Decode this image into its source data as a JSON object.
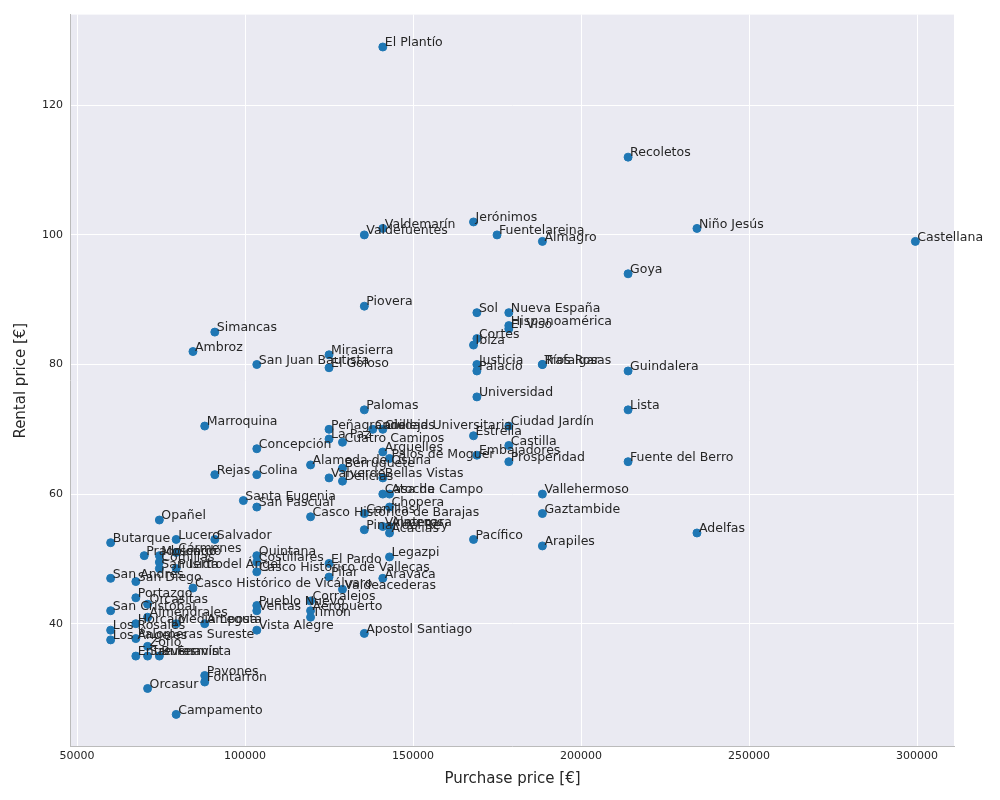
{
  "chart_data": {
    "type": "scatter",
    "x_label": "Purchase price [€]",
    "y_label": "Rental price [€]",
    "color": "#1f77b4",
    "grid": true,
    "xlim": [
      48200,
      311000
    ],
    "xticks": [
      50000,
      100000,
      150000,
      200000,
      250000,
      300000
    ],
    "ylim": [
      21,
      134
    ],
    "yticks": [
      40,
      60,
      80,
      100,
      120
    ],
    "labels": [
      "El Plantío",
      "Recoletos",
      "Niño Jesús",
      "Castellana",
      "Jerónimos",
      "Valdemarín",
      "Valdefuentes",
      "Fuentelareina",
      "Almagro",
      "Goya",
      "Piovera",
      "Sol",
      "Nueva España",
      "Hispanoamérica",
      "El Viso",
      "Simancas",
      "Cortes",
      "Ibiza",
      "Ambroz",
      "Mirasierra",
      "San Juan Bautista",
      "El Goloso",
      "Justicia",
      "Palacio",
      "Ríos Rosas",
      "Trafalgar",
      "Guindalera",
      "Universidad",
      "Palomas",
      "Lista",
      "Marroquina",
      "Peñagrande",
      "Canillejas",
      "Ciudad Universitaria",
      "Ciudad Jardín",
      "La Paz",
      "Cuatro Caminos",
      "Estrella",
      "Castilla",
      "Concepción",
      "Argüelles",
      "Embajadores",
      "Palos de Moguer",
      "Prosperidad",
      "Fuente del Berro",
      "Alameda de Osuna",
      "Berruguete",
      "Rejas",
      "Colina",
      "Valverde",
      "Delicias",
      "Bellas Vistas",
      "Casa de Campo",
      "Atocha",
      "Vallehermoso",
      "Santa Eugenia",
      "San Pascual",
      "Chopera",
      "Canillas",
      "Gaztambide",
      "Casco Histórico de Barajas",
      "Opañel",
      "Pinar del Rey",
      "Vinateros",
      "Almenara",
      "Acacias",
      "Adelfas",
      "Pacífico",
      "Butarque",
      "Lucero",
      "Salvador",
      "Arapiles",
      "Cármenes",
      "Pradolongo",
      "Moscardó",
      "Quintana",
      "Legazpi",
      "Comillas",
      "Costillares",
      "El Pardo",
      "San Isidro",
      "Puerta del Ángel",
      "Casco Histórico de Vallecas",
      "Pilar",
      "Aravaca",
      "San Andrés",
      "San Diego",
      "Casco Histórico de Vicálvaro",
      "Valdeacederas",
      "Portazgo",
      "Corralejos",
      "Orcasitas",
      "Pueblo Nuevo",
      "Ventas",
      "San Cristóbal",
      "Aeropuerto",
      "Timón",
      "Almendrales",
      "Horcajo",
      "Media Legua",
      "Amposta",
      "Vista Alegre",
      "Los Rosales",
      "Apostol Santiago",
      "Palomeras Sureste",
      "Los Ángeles",
      "Zofío",
      "Entrevías",
      "San Fermín",
      "Buenavista",
      "Pavones",
      "Fontarrón",
      "Orcasur",
      "Campamento"
    ],
    "x": [
      141000,
      214000,
      234500,
      299500,
      168000,
      141000,
      135500,
      175000,
      188500,
      214000,
      135500,
      169000,
      178500,
      178500,
      178500,
      91000,
      169000,
      168000,
      84500,
      125000,
      103500,
      125000,
      169000,
      169000,
      188500,
      188500,
      214000,
      169000,
      135500,
      214000,
      88000,
      125000,
      138000,
      141000,
      178500,
      125000,
      129000,
      168000,
      178500,
      103500,
      141000,
      169000,
      143000,
      178500,
      214000,
      119500,
      129000,
      91000,
      103500,
      125000,
      129000,
      141000,
      141000,
      143000,
      188500,
      99500,
      103500,
      143000,
      135500,
      188500,
      119500,
      74500,
      135500,
      141000,
      143000,
      143000,
      234500,
      168000,
      60000,
      79500,
      91000,
      188500,
      79500,
      70000,
      74500,
      103500,
      143000,
      74500,
      103500,
      125000,
      74500,
      79500,
      103500,
      125000,
      141000,
      60000,
      67500,
      84500,
      129000,
      67500,
      119500,
      71000,
      103500,
      103500,
      60000,
      119500,
      119500,
      71000,
      67500,
      79500,
      88000,
      103500,
      60000,
      135500,
      67500,
      60000,
      71000,
      67500,
      71000,
      74500,
      88000,
      88000,
      71000,
      79500
    ],
    "values": [
      129,
      112,
      101,
      99,
      102,
      101,
      100,
      100,
      99,
      94,
      89,
      88,
      88,
      86,
      85.5,
      85,
      84,
      83,
      82,
      81.5,
      80,
      79.5,
      80,
      79,
      80,
      80,
      79,
      75,
      73,
      73,
      70.5,
      70,
      70,
      70,
      70.5,
      68.5,
      68,
      69,
      67.5,
      67,
      66.5,
      66,
      65.5,
      65,
      65,
      64.5,
      64,
      63,
      63,
      62.5,
      62,
      62.5,
      60,
      60,
      60,
      59,
      58,
      58,
      57,
      57,
      56.5,
      56,
      54.5,
      55,
      55,
      54,
      54,
      53,
      52.5,
      53,
      53,
      52,
      51,
      50.5,
      50.5,
      50.5,
      50.3,
      49.5,
      49.5,
      49.3,
      48.5,
      48.5,
      48,
      47.2,
      47,
      47,
      46.5,
      45.5,
      45.3,
      44,
      43.5,
      43,
      42.8,
      42,
      42,
      42,
      41,
      41,
      40,
      40,
      40,
      39,
      39,
      38.5,
      37.7,
      37.5,
      36.5,
      35,
      35,
      35,
      32,
      31,
      30,
      26
    ]
  }
}
